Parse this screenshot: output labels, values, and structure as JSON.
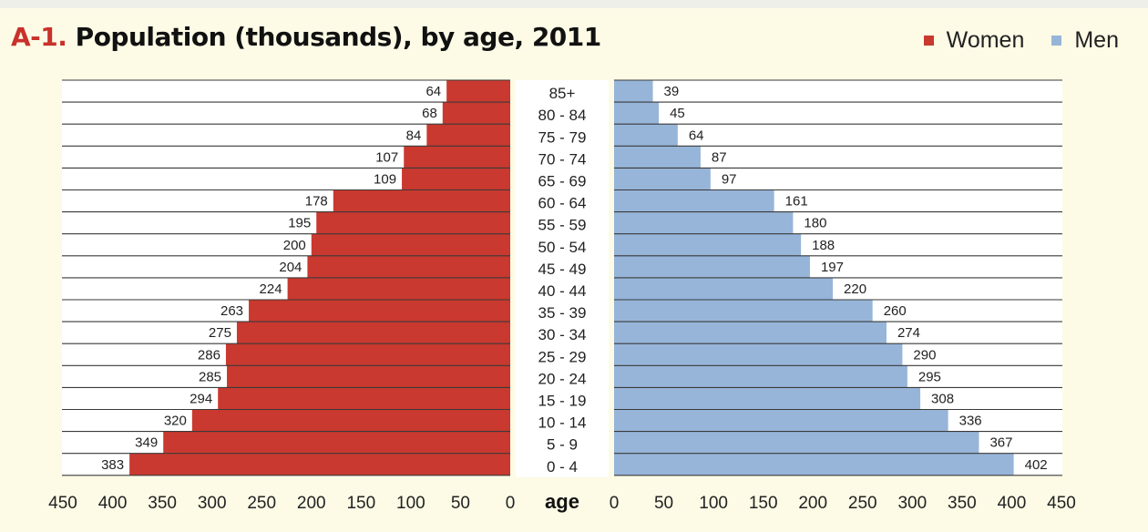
{
  "title": {
    "prefix": "A-1.",
    "text": "Population (thousands), by age, 2011"
  },
  "legend": [
    {
      "label": "Women",
      "color": "#c9392f"
    },
    {
      "label": "Men",
      "color": "#97b5d9"
    }
  ],
  "chart_data": {
    "type": "bar",
    "subtype": "population-pyramid",
    "title": "A-1. Population (thousands), by age, 2011",
    "center_label": "age",
    "categories": [
      "85+",
      "80 - 84",
      "75 - 79",
      "70 - 74",
      "65 - 69",
      "60 - 64",
      "55 - 59",
      "50 - 54",
      "45 - 49",
      "40 - 44",
      "35 - 39",
      "30 - 34",
      "25 - 29",
      "20 - 24",
      "15 - 19",
      "10 - 14",
      "5 - 9",
      "0 - 4"
    ],
    "series": [
      {
        "name": "Women",
        "color": "#c9392f",
        "side": "left",
        "values": [
          64,
          68,
          84,
          107,
          109,
          178,
          195,
          200,
          204,
          224,
          263,
          275,
          286,
          285,
          294,
          320,
          349,
          383
        ]
      },
      {
        "name": "Men",
        "color": "#97b5d9",
        "side": "right",
        "values": [
          39,
          45,
          64,
          87,
          97,
          161,
          180,
          188,
          197,
          220,
          260,
          274,
          290,
          295,
          308,
          336,
          367,
          402
        ]
      }
    ],
    "x_ticks": [
      "450",
      "400",
      "350",
      "300",
      "250",
      "200",
      "150",
      "100",
      "50",
      "0"
    ],
    "xlim": [
      0,
      450
    ],
    "grid": true,
    "legend_position": "top-right"
  }
}
